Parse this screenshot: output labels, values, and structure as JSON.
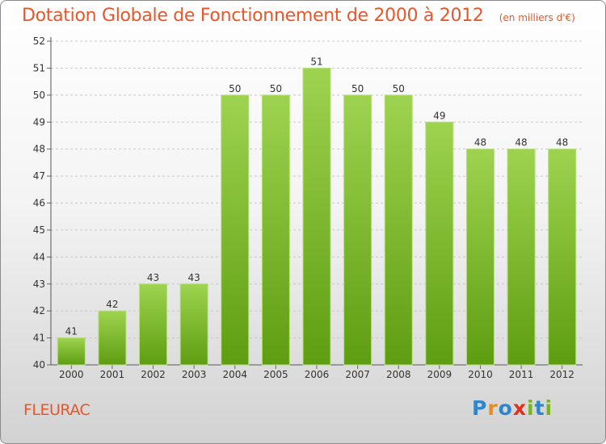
{
  "title": "Dotation Globale de Fonctionnement de 2000 à 2012",
  "unit": "(en milliers d'€)",
  "commune": "FLEURAC",
  "logo": {
    "letters": [
      {
        "char": "P",
        "color": "#2f86c9"
      },
      {
        "char": "r",
        "color": "#e58e1a"
      },
      {
        "char": "o",
        "color": "#2f86c9"
      },
      {
        "char": "x",
        "color": "#e0301e"
      },
      {
        "char": "i",
        "color": "#7ab51d"
      },
      {
        "char": "t",
        "color": "#2f86c9"
      },
      {
        "char": "i",
        "color": "#7ab51d"
      }
    ]
  },
  "colors": {
    "accent": "#e8562a",
    "bar_light": "#9ed34f",
    "bar_dark": "#5e9d12"
  },
  "chart_data": {
    "type": "bar",
    "categories": [
      "2000",
      "2001",
      "2002",
      "2003",
      "2004",
      "2005",
      "2006",
      "2007",
      "2008",
      "2009",
      "2010",
      "2011",
      "2012"
    ],
    "values": [
      41,
      42,
      43,
      43,
      50,
      50,
      51,
      50,
      50,
      49,
      48,
      48,
      48
    ],
    "title": "Dotation Globale de Fonctionnement de 2000 à 2012",
    "xlabel": "",
    "ylabel": "",
    "ylim": [
      40,
      52
    ],
    "yticks": [
      40,
      41,
      42,
      43,
      44,
      45,
      46,
      47,
      48,
      49,
      50,
      51,
      52
    ],
    "grid": true,
    "data_labels": true
  }
}
